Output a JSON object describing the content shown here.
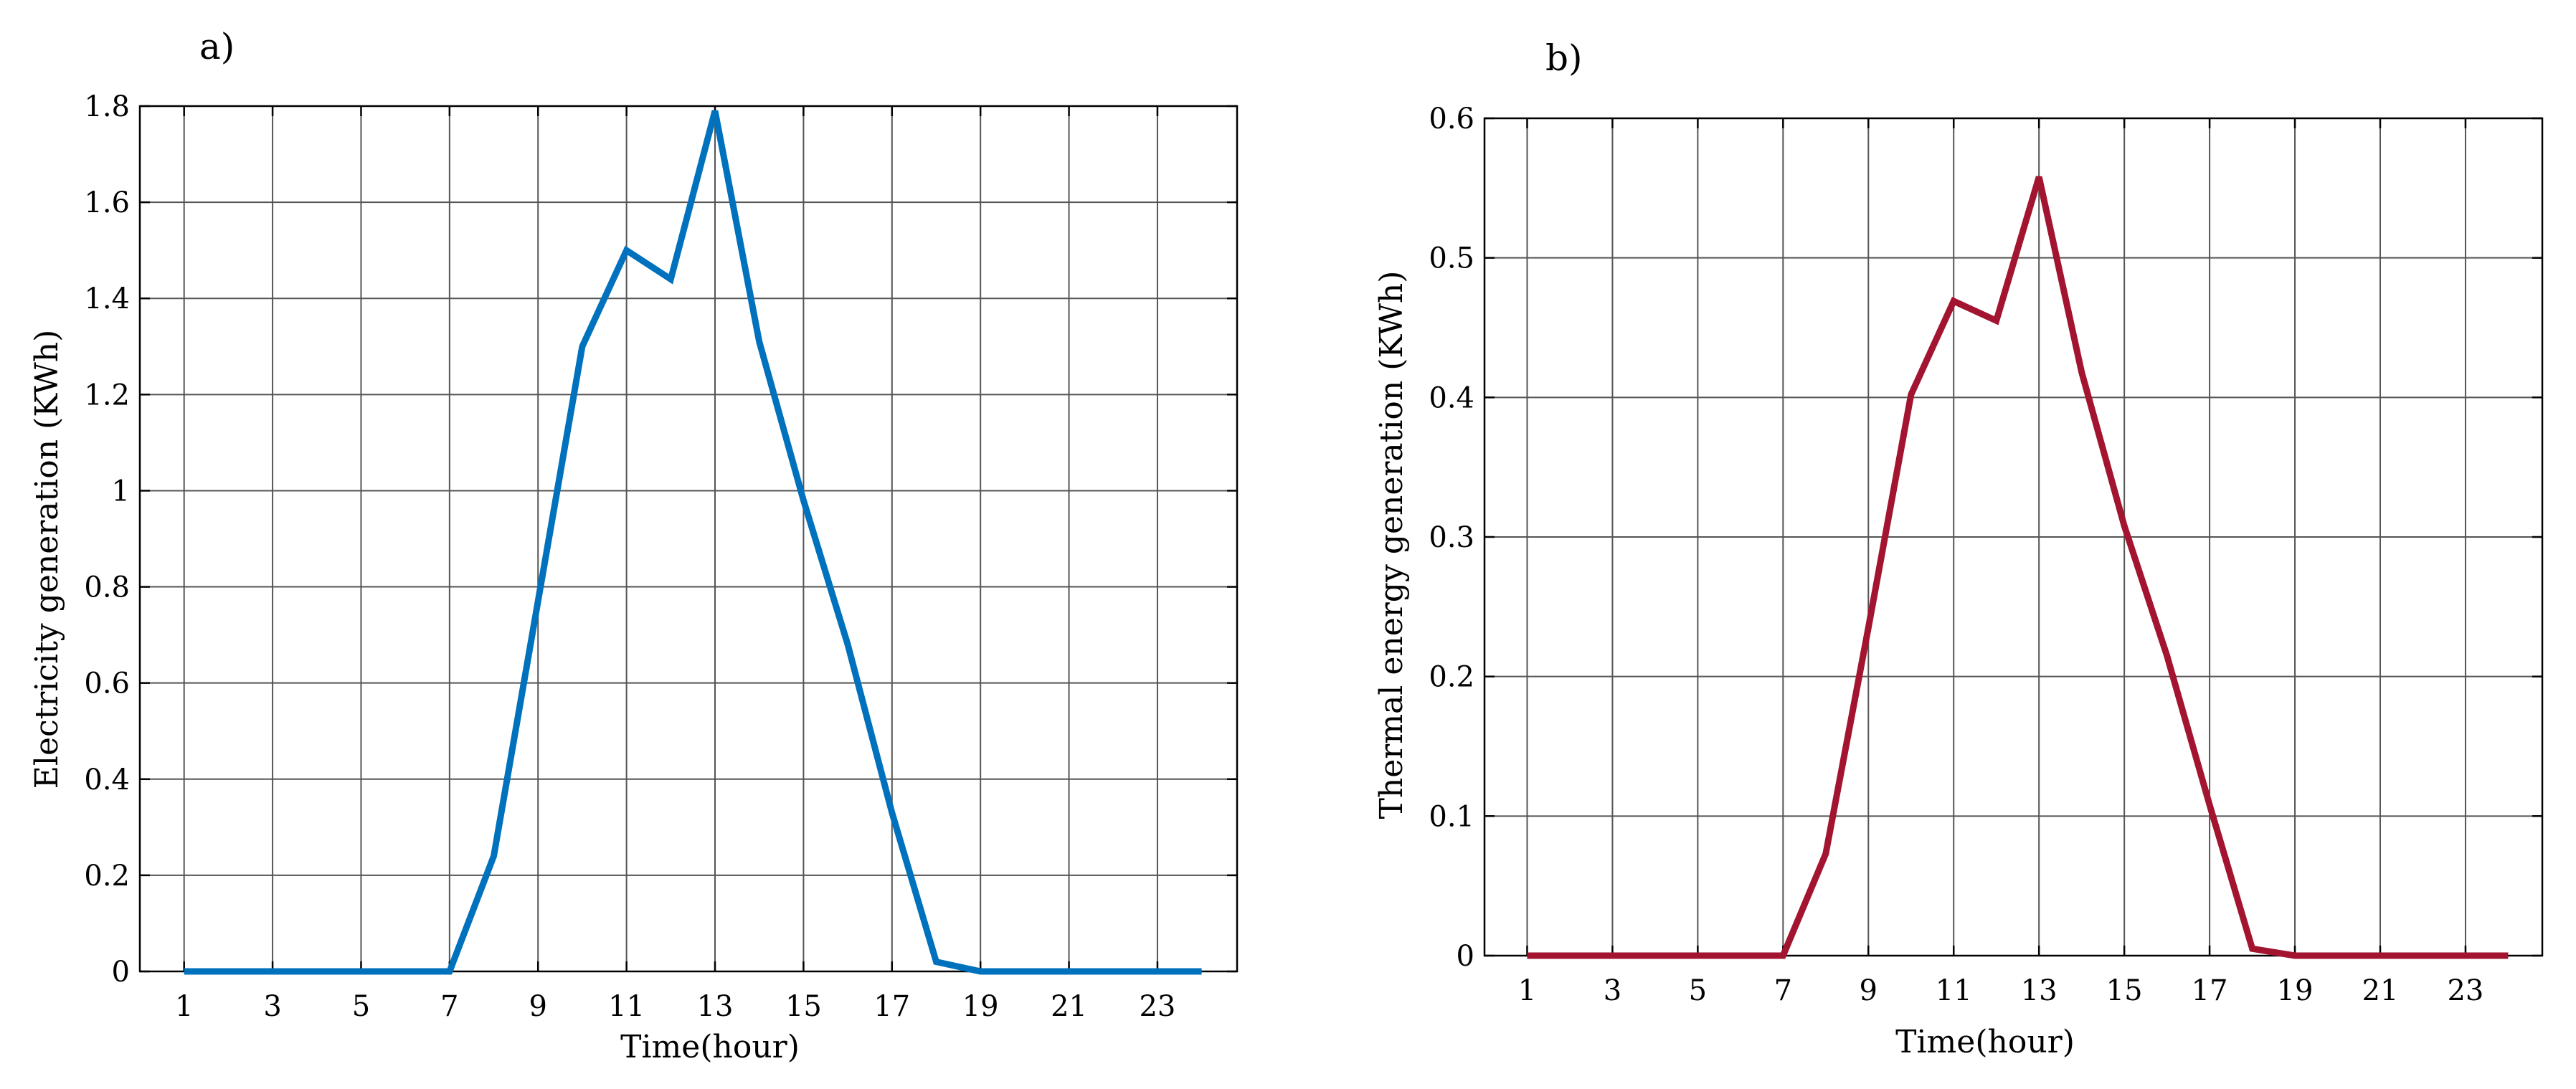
{
  "chart_data": [
    {
      "type": "line",
      "panel_label": "a)",
      "xlabel": "Time(hour)",
      "ylabel": "Electricity generation (KWh)",
      "xlim": [
        0,
        24.8
      ],
      "ylim": [
        0,
        1.8
      ],
      "x_ticks": [
        1,
        3,
        5,
        7,
        9,
        11,
        13,
        15,
        17,
        19,
        21,
        23
      ],
      "y_ticks": [
        0,
        0.2,
        0.4,
        0.6,
        0.8,
        1,
        1.2,
        1.4,
        1.6,
        1.8
      ],
      "y_tick_labels": [
        "0",
        "0.2",
        "0.4",
        "0.6",
        "0.8",
        "1",
        "1.2",
        "1.4",
        "1.6",
        "1.8"
      ],
      "grid": true,
      "line_color": "#0072BD",
      "x": [
        1,
        2,
        3,
        4,
        5,
        6,
        7,
        8,
        9,
        10,
        11,
        12,
        13,
        14,
        15,
        16,
        17,
        18,
        19,
        20,
        21,
        22,
        23,
        24
      ],
      "values": [
        0,
        0,
        0,
        0,
        0,
        0,
        0,
        0.24,
        0.77,
        1.3,
        1.5,
        1.44,
        1.79,
        1.31,
        0.98,
        0.68,
        0.33,
        0.02,
        0,
        0,
        0,
        0,
        0,
        0
      ]
    },
    {
      "type": "line",
      "panel_label": "b)",
      "xlabel": "Time(hour)",
      "ylabel": "Thermal energy generation (KWh)",
      "xlim": [
        0,
        24.8
      ],
      "ylim": [
        0,
        0.6
      ],
      "x_ticks": [
        1,
        3,
        5,
        7,
        9,
        11,
        13,
        15,
        17,
        19,
        21,
        23
      ],
      "y_ticks": [
        0,
        0.1,
        0.2,
        0.3,
        0.4,
        0.5,
        0.6
      ],
      "y_tick_labels": [
        "0",
        "0.1",
        "0.2",
        "0.3",
        "0.4",
        "0.5",
        "0.6"
      ],
      "grid": true,
      "line_color": "#A2142F",
      "x": [
        1,
        2,
        3,
        4,
        5,
        6,
        7,
        8,
        9,
        10,
        11,
        12,
        13,
        14,
        15,
        16,
        17,
        18,
        19,
        20,
        21,
        22,
        23,
        24
      ],
      "values": [
        0,
        0,
        0,
        0,
        0,
        0,
        0,
        0.073,
        0.235,
        0.402,
        0.469,
        0.455,
        0.558,
        0.418,
        0.308,
        0.215,
        0.108,
        0.005,
        0,
        0,
        0,
        0,
        0,
        0
      ]
    }
  ]
}
